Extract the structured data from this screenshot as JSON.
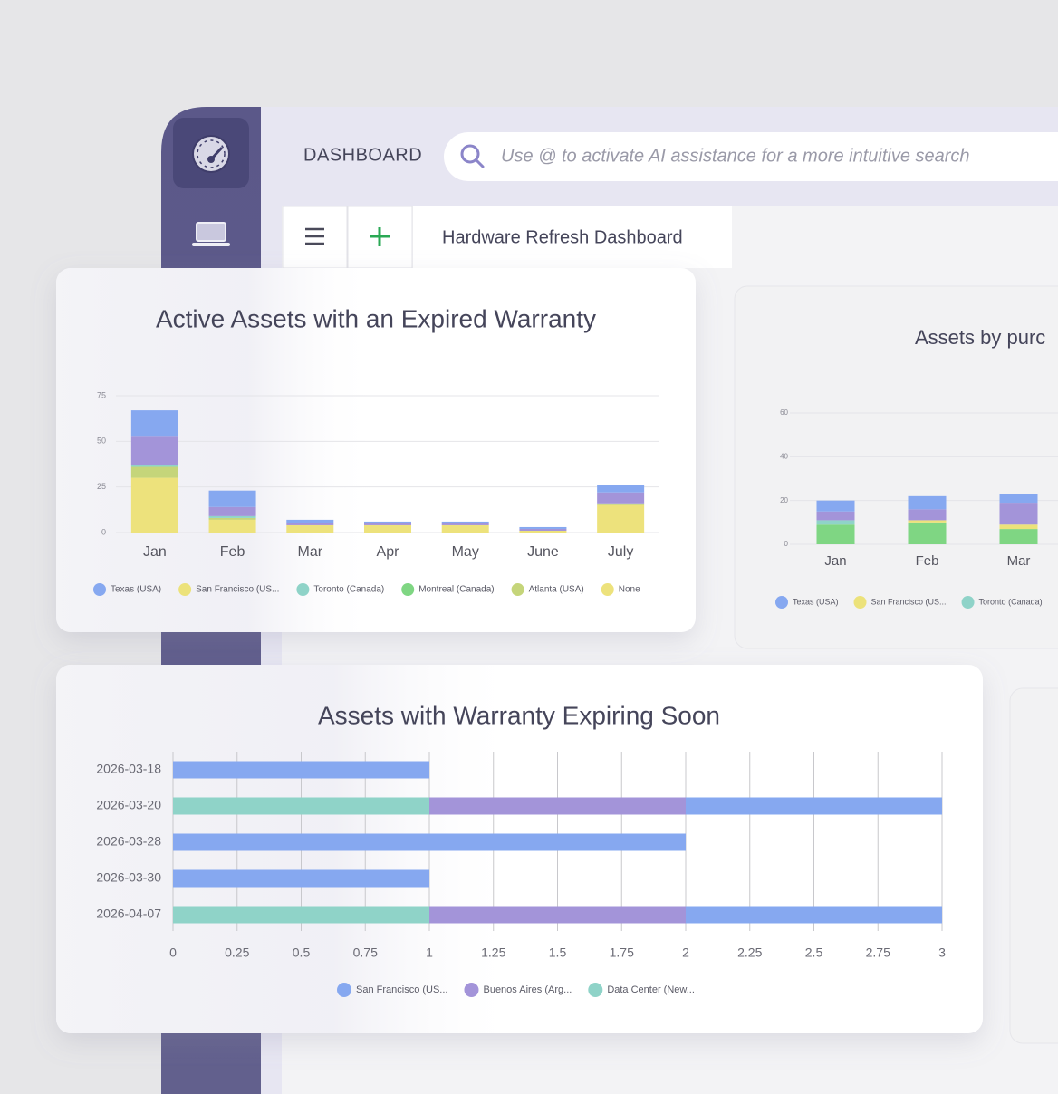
{
  "header": {
    "title": "DASHBOARD",
    "search_placeholder": "Use @ to activate AI assistance for a more intuitive search"
  },
  "tab": {
    "title": "Hardware Refresh Dashboard"
  },
  "chart_data": [
    {
      "type": "bar",
      "stacked": true,
      "title": "Active Assets with an Expired Warranty",
      "categories": [
        "Jan",
        "Feb",
        "Mar",
        "Apr",
        "May",
        "June",
        "July"
      ],
      "series": [
        {
          "name": "Texas (USA)",
          "color": "#86a8f0",
          "values": [
            14,
            9,
            2,
            1,
            1,
            1,
            4
          ]
        },
        {
          "name": null,
          "color": "#a394d9",
          "values": [
            16,
            5,
            1,
            1,
            1,
            1,
            6
          ]
        },
        {
          "name": "San Francisco (US...",
          "color": "#ece27a",
          "values": [
            0,
            0,
            0,
            0,
            0,
            0,
            0
          ]
        },
        {
          "name": "Toronto (Canada)",
          "color": "#8fd3c8",
          "values": [
            1,
            1,
            0,
            0,
            0,
            0,
            0
          ]
        },
        {
          "name": "Montreal (Canada)",
          "color": "#7fd683",
          "values": [
            0,
            0,
            0,
            0,
            0,
            0,
            0
          ]
        },
        {
          "name": "Atlanta (USA)",
          "color": "#c5d57a",
          "values": [
            6,
            1,
            0,
            0,
            0,
            0,
            1
          ]
        },
        {
          "name": "None",
          "color": "#ede27c",
          "values": [
            30,
            7,
            4,
            4,
            4,
            1,
            15
          ]
        }
      ],
      "ylim": [
        0,
        75
      ],
      "yticks": [
        0,
        25,
        50,
        75
      ],
      "grid": true
    },
    {
      "type": "bar",
      "stacked": true,
      "title": "Assets by purc",
      "categories": [
        "Jan",
        "Feb",
        "Mar"
      ],
      "series": [
        {
          "name": "Texas (USA)",
          "color": "#86a8f0",
          "values": [
            5,
            6,
            4
          ]
        },
        {
          "name": null,
          "color": "#a394d9",
          "values": [
            4,
            5,
            10
          ]
        },
        {
          "name": "San Francisco (US...",
          "color": "#ece27a",
          "values": [
            0,
            1,
            2
          ]
        },
        {
          "name": "Toronto (Canada)",
          "color": "#8fd3c8",
          "values": [
            2,
            0,
            0
          ]
        },
        {
          "name": null,
          "color": "#7fd683",
          "values": [
            9,
            10,
            7
          ]
        }
      ],
      "ylim": [
        0,
        60
      ],
      "yticks": [
        0,
        20,
        40,
        60
      ],
      "grid": true
    },
    {
      "type": "barh",
      "stacked": true,
      "title": "Assets with Warranty Expiring Soon",
      "categories": [
        "2026-03-18",
        "2026-03-20",
        "2026-03-28",
        "2026-03-30",
        "2026-04-07"
      ],
      "series": [
        {
          "name": "San Francisco (US...",
          "color": "#86a8f0",
          "values": [
            1,
            1,
            2,
            1,
            1
          ]
        },
        {
          "name": "Buenos Aires (Arg...",
          "color": "#a394d9",
          "values": [
            0,
            1,
            0,
            0,
            1
          ]
        },
        {
          "name": "Data Center (New...",
          "color": "#8fd3c8",
          "values": [
            0,
            1,
            0,
            0,
            1
          ]
        }
      ],
      "xlim": [
        0,
        3
      ],
      "xticks": [
        0,
        0.25,
        0.5,
        0.75,
        1,
        1.25,
        1.5,
        1.75,
        2,
        2.25,
        2.5,
        2.75,
        3
      ],
      "grid": true
    }
  ]
}
